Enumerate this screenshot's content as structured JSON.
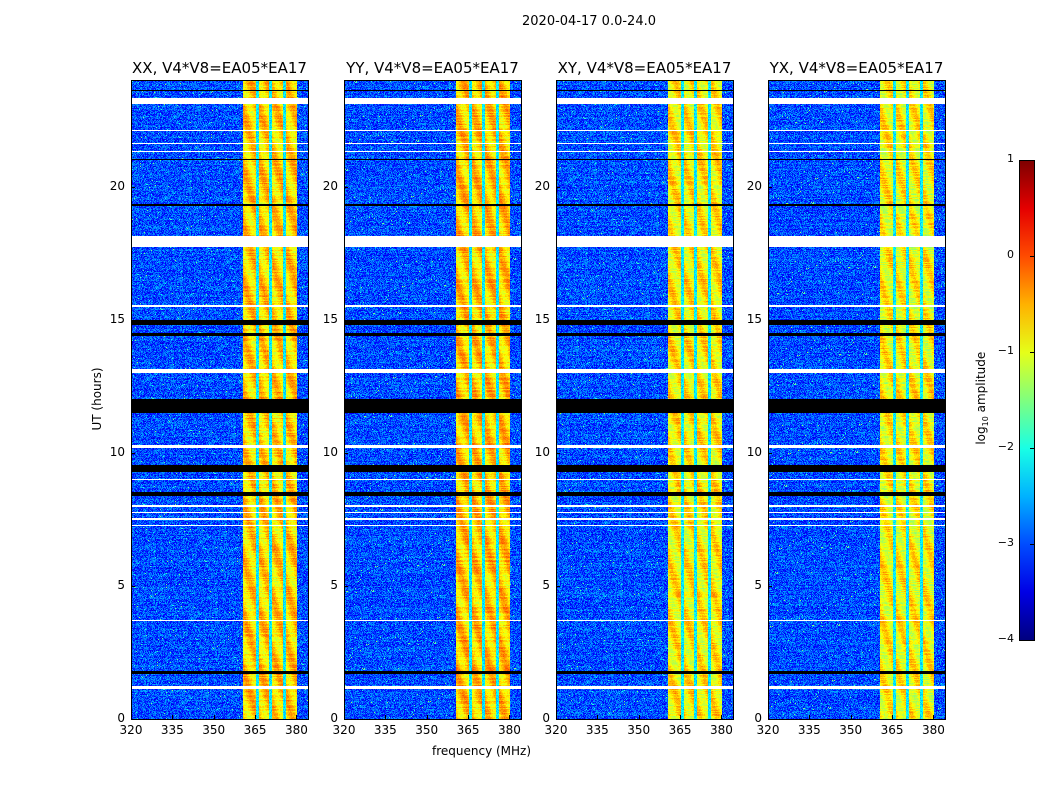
{
  "suptitle": "2020-04-17 0.0-24.0",
  "xlabel": "frequency (MHz)",
  "ylabel": "UT (hours)",
  "colorbar": {
    "label_main": "log",
    "label_sub": "10",
    "label_rest": " amplitude",
    "range": [
      -4,
      1
    ],
    "ticks": [
      "1",
      "0",
      "−1",
      "−2",
      "−3",
      "−4"
    ],
    "tick_values": [
      1,
      0,
      -1,
      -2,
      -3,
      -4
    ],
    "colormap": "jet"
  },
  "chart_data": {
    "type": "heatmap",
    "title": "2020-04-17 0.0-24.0",
    "xlabel": "frequency (MHz)",
    "ylabel": "UT (hours)",
    "xlim": [
      320,
      384.2
    ],
    "ylim": [
      0,
      24
    ],
    "xticks": [
      320,
      335,
      350,
      365,
      380
    ],
    "xtick_labels": [
      "320",
      "335",
      "350",
      "365",
      "380"
    ],
    "yticks": [
      0,
      5,
      10,
      15,
      20
    ],
    "ytick_labels": [
      "0",
      "5",
      "10",
      "15",
      "20"
    ],
    "value_label": "log10 amplitude",
    "background_level": -3.0,
    "strong_band_mhz": [
      360.6,
      380.0
    ],
    "strong_band_level": -0.8,
    "gap_channels_mhz": [
      365.7,
      370.4,
      375.5
    ],
    "flagged_white_hours": [
      [
        23.1,
        23.35
      ],
      [
        22.1,
        22.15
      ],
      [
        21.6,
        21.65
      ],
      [
        21.3,
        21.35
      ],
      [
        17.75,
        18.15
      ],
      [
        15.5,
        15.55
      ],
      [
        13.0,
        13.15
      ],
      [
        10.2,
        10.3
      ],
      [
        9.0,
        9.05
      ],
      [
        8.0,
        8.05
      ],
      [
        7.75,
        7.8
      ],
      [
        7.5,
        7.55
      ],
      [
        7.25,
        7.3
      ],
      [
        3.7,
        3.75
      ],
      [
        1.15,
        1.25
      ]
    ],
    "flagged_black_hours": [
      [
        23.6,
        23.65
      ],
      [
        21.0,
        21.05
      ],
      [
        19.3,
        19.35
      ],
      [
        14.8,
        15.0
      ],
      [
        14.4,
        14.5
      ],
      [
        11.5,
        12.05
      ],
      [
        9.3,
        9.55
      ],
      [
        8.4,
        8.55
      ],
      [
        1.7,
        1.82
      ]
    ],
    "panels": [
      {
        "title": "XX, V4*V8=EA05*EA17",
        "band_gain": 0.15
      },
      {
        "title": "YY, V4*V8=EA05*EA17",
        "band_gain": 0.2
      },
      {
        "title": "XY, V4*V8=EA05*EA17",
        "band_gain": 0.0
      },
      {
        "title": "YX, V4*V8=EA05*EA17",
        "band_gain": -0.05
      }
    ]
  }
}
